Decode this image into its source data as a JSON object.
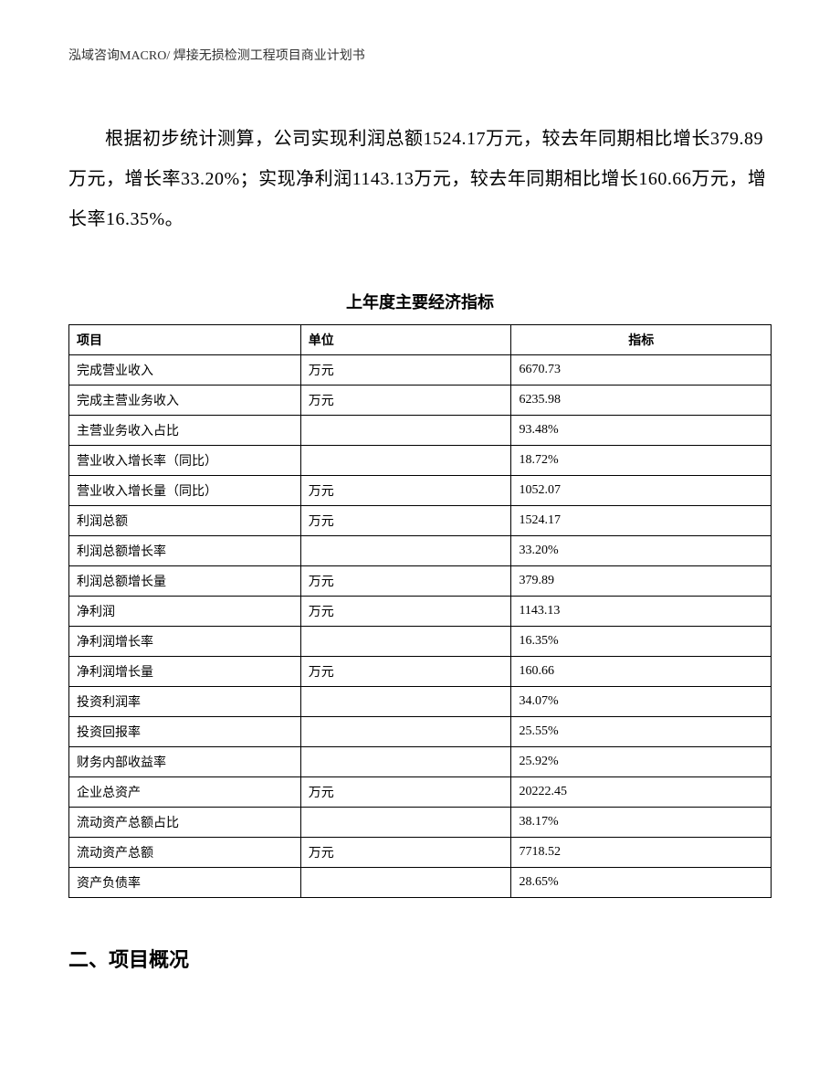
{
  "header": "泓域咨询MACRO/ 焊接无损检测工程项目商业计划书",
  "body_paragraph": "根据初步统计测算，公司实现利润总额1524.17万元，较去年同期相比增长379.89万元，增长率33.20%；实现净利润1143.13万元，较去年同期相比增长160.66万元，增长率16.35%。",
  "table": {
    "title": "上年度主要经济指标",
    "columns": [
      "项目",
      "单位",
      "指标"
    ],
    "rows": [
      [
        "完成营业收入",
        "万元",
        "6670.73"
      ],
      [
        "完成主营业务收入",
        "万元",
        "6235.98"
      ],
      [
        "主营业务收入占比",
        "",
        "93.48%"
      ],
      [
        "营业收入增长率（同比）",
        "",
        "18.72%"
      ],
      [
        "营业收入增长量（同比）",
        "万元",
        "1052.07"
      ],
      [
        "利润总额",
        "万元",
        "1524.17"
      ],
      [
        "利润总额增长率",
        "",
        "33.20%"
      ],
      [
        "利润总额增长量",
        "万元",
        "379.89"
      ],
      [
        "净利润",
        "万元",
        "1143.13"
      ],
      [
        "净利润增长率",
        "",
        "16.35%"
      ],
      [
        "净利润增长量",
        "万元",
        "160.66"
      ],
      [
        "投资利润率",
        "",
        "34.07%"
      ],
      [
        "投资回报率",
        "",
        "25.55%"
      ],
      [
        "财务内部收益率",
        "",
        "25.92%"
      ],
      [
        "企业总资产",
        "万元",
        "20222.45"
      ],
      [
        "流动资产总额占比",
        "",
        "38.17%"
      ],
      [
        "流动资产总额",
        "万元",
        "7718.52"
      ],
      [
        "资产负债率",
        "",
        "28.65%"
      ]
    ]
  },
  "section_heading": "二、项目概况"
}
